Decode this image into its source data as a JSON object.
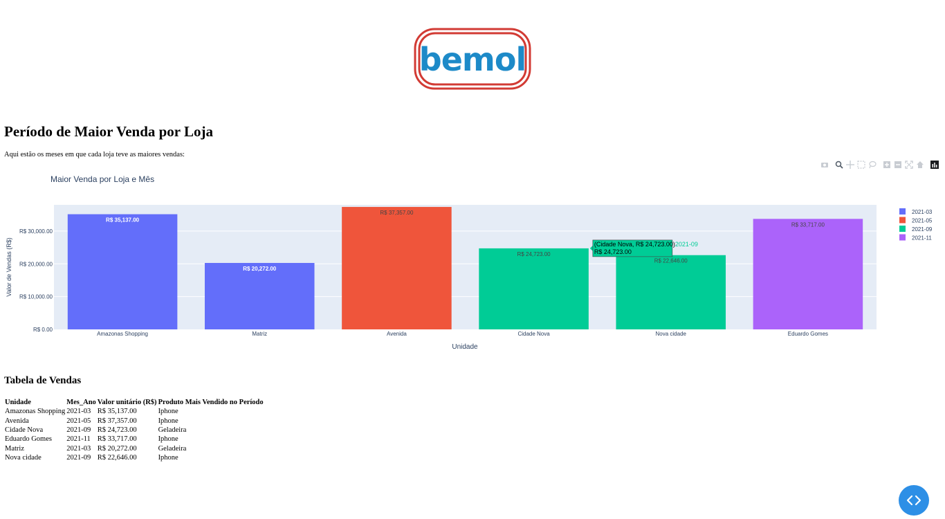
{
  "logo": {
    "brand": "bemol"
  },
  "page": {
    "title": "Período de Maior Venda por Loja",
    "intro": "Aqui estão os meses em que cada loja teve as maiores vendas:"
  },
  "modebar": {
    "icons": [
      "camera-icon",
      "zoom-icon",
      "pan-icon",
      "box-select-icon",
      "lasso-icon",
      "zoom-in-icon",
      "zoom-out-icon",
      "autoscale-icon",
      "home-icon",
      "plotly-logo-icon"
    ]
  },
  "chart_data": {
    "type": "bar",
    "title": "Maior Venda por Loja e Mês",
    "xlabel": "Unidade",
    "ylabel": "Valor de Vendas (R$)",
    "ylim": [
      0,
      38000
    ],
    "yticks": [
      0,
      10000,
      20000,
      30000
    ],
    "ytick_labels": [
      "R$ 0.00",
      "R$ 10,000.00",
      "R$ 20,000.00",
      "R$ 30,000.00"
    ],
    "categories": [
      "Amazonas Shopping",
      "Matriz",
      "Avenida",
      "Cidade Nova",
      "Nova cidade",
      "Eduardo Gomes"
    ],
    "values": [
      35137,
      20272,
      37357,
      24723,
      22646,
      33717
    ],
    "labels": [
      "R$ 35,137.00",
      "R$ 20,272.00",
      "R$ 37,357.00",
      "R$ 24,723.00",
      "R$ 22,646.00",
      "R$ 33,717.00"
    ],
    "bar_series": [
      "2021-03",
      "2021-03",
      "2021-05",
      "2021-09",
      "2021-09",
      "2021-11"
    ],
    "series": [
      {
        "name": "2021-03",
        "color": "#636efa"
      },
      {
        "name": "2021-05",
        "color": "#ef553b"
      },
      {
        "name": "2021-09",
        "color": "#00cc96"
      },
      {
        "name": "2021-11",
        "color": "#ab63fa"
      }
    ],
    "plot_bg": "#e5ecf6",
    "grid": true,
    "legend": "right",
    "hover": {
      "category": "Cidade Nova",
      "line1": "(Cidade Nova, R$ 24,723.00)",
      "line2": "R$ 24,723.00",
      "series": "2021-09"
    }
  },
  "table": {
    "title": "Tabela de Vendas",
    "headers": [
      "Unidade",
      "Mes_Ano",
      "Valor unitário (R$)",
      "Produto Mais Vendido no Período"
    ],
    "rows": [
      [
        "Amazonas Shopping",
        "2021-03",
        "R$ 35,137.00",
        "Iphone"
      ],
      [
        "Avenida",
        "2021-05",
        "R$ 37,357.00",
        "Iphone"
      ],
      [
        "Cidade Nova",
        "2021-09",
        "R$ 24,723.00",
        "Geladeira"
      ],
      [
        "Eduardo Gomes",
        "2021-11",
        "R$ 33,717.00",
        "Iphone"
      ],
      [
        "Matriz",
        "2021-03",
        "R$ 20,272.00",
        "Geladeira"
      ],
      [
        "Nova cidade",
        "2021-09",
        "R$ 22,646.00",
        "Iphone"
      ]
    ]
  }
}
